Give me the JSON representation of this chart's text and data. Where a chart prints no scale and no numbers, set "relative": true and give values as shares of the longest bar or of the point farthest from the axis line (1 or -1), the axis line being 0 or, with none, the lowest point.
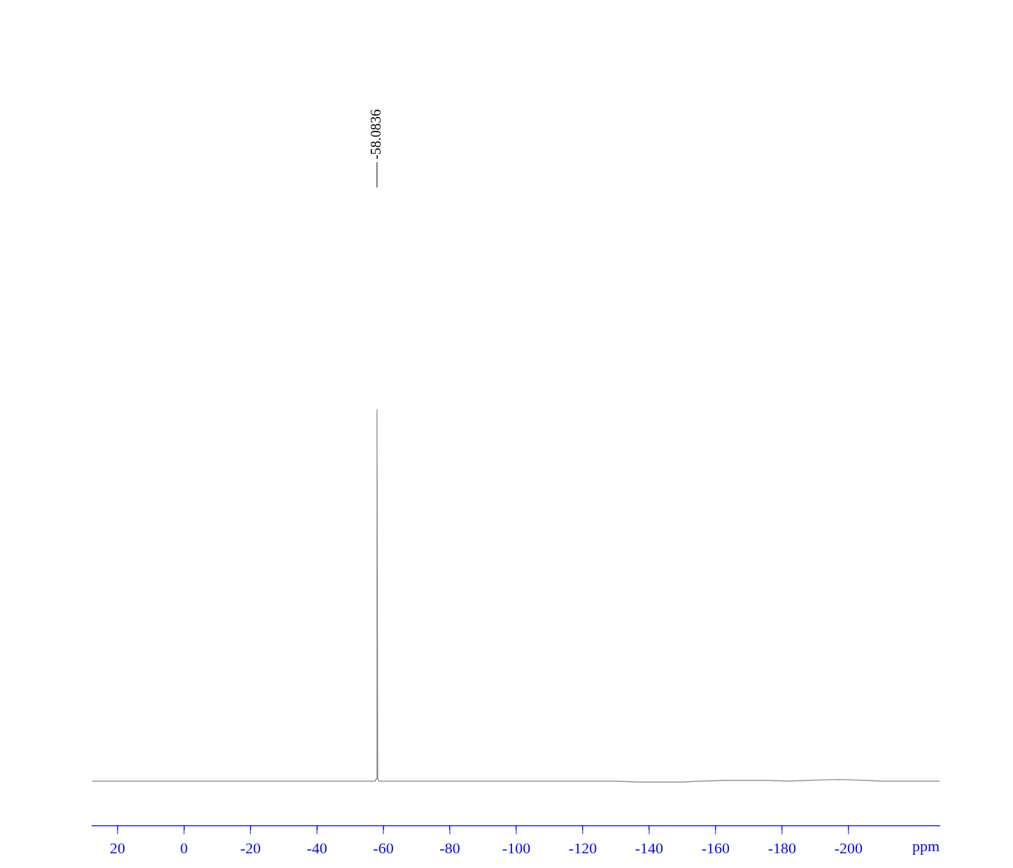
{
  "chart_data": {
    "type": "line",
    "relative": true,
    "xlabel": "ppm",
    "xlim": [
      27.6,
      -227.4
    ],
    "xticks": [
      20,
      0,
      -20,
      -40,
      -60,
      -80,
      -100,
      -120,
      -140,
      -160,
      -180,
      -200
    ],
    "grid": false,
    "legend": false,
    "marker": "none",
    "line_style": "solid",
    "series": [
      {
        "color": "#808080",
        "x": [
          27.6,
          -57.5,
          -57.9,
          -58.0836,
          -58.3,
          -58.6,
          -130,
          -137,
          -150,
          -155,
          -163,
          -175,
          -182,
          -188,
          -197,
          -205,
          -210,
          -227.4
        ],
        "values": [
          0.107,
          0.107,
          0.113,
          1,
          0.113,
          0.107,
          0.107,
          0.105,
          0.105,
          0.107,
          0.109,
          0.109,
          0.107,
          0.109,
          0.111,
          0.109,
          0.107,
          0.107
        ]
      }
    ],
    "annotations": [
      "-58.0836"
    ]
  }
}
